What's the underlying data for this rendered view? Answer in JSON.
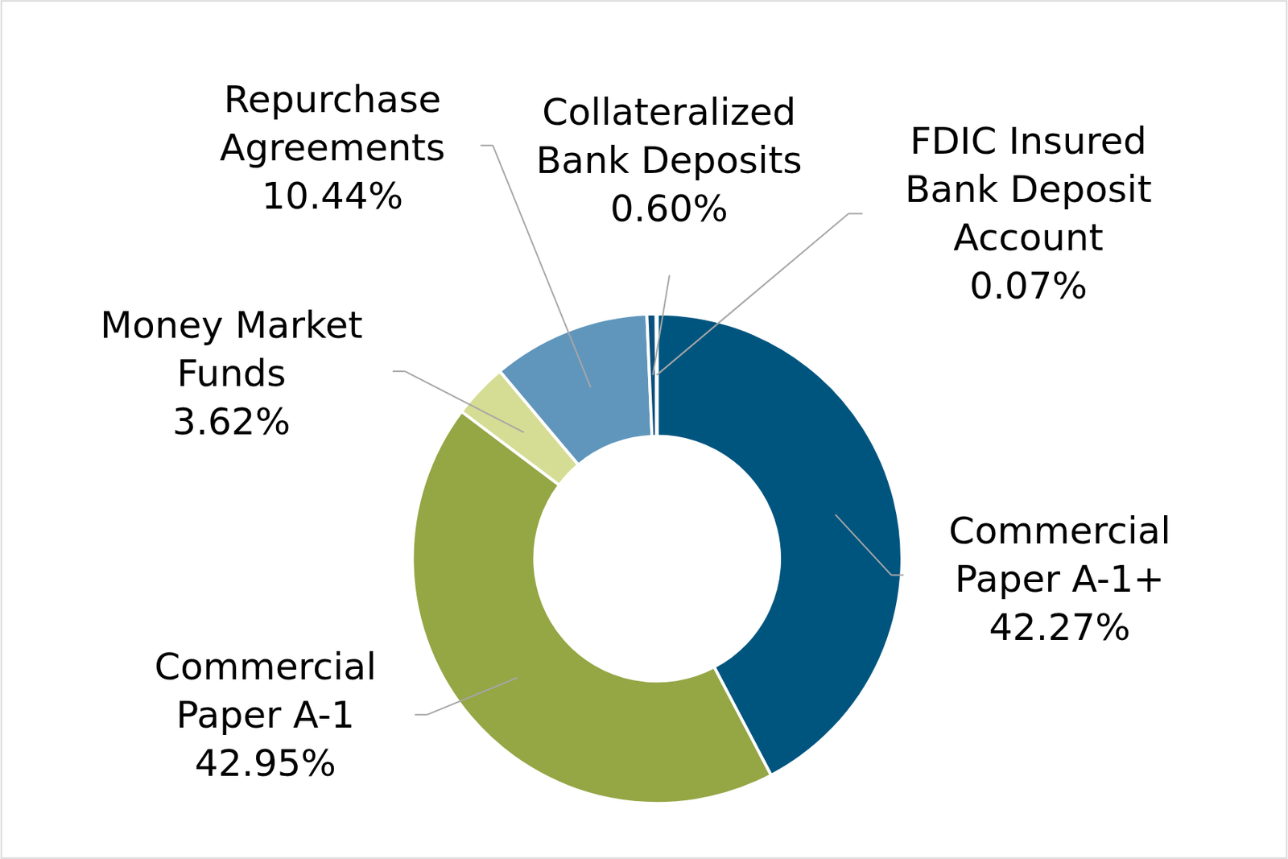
{
  "chart_data": {
    "type": "donut",
    "categories": [
      "Commercial Paper A-1+",
      "Commercial Paper A-1",
      "Money Market Funds",
      "Repurchase Agreements",
      "Collateralized Bank Deposits",
      "FDIC Insured Bank Deposit Account"
    ],
    "values": [
      42.27,
      42.95,
      3.62,
      10.44,
      0.6,
      0.07
    ],
    "value_labels": [
      "42.27%",
      "42.95%",
      "3.62%",
      "10.44%",
      "0.60%",
      "0.07%"
    ],
    "colors": [
      "#00557f",
      "#95a645",
      "#d5dd94",
      "#6096bb",
      "#0a4f7d",
      "#b9cfe0"
    ],
    "data_labels": true
  }
}
